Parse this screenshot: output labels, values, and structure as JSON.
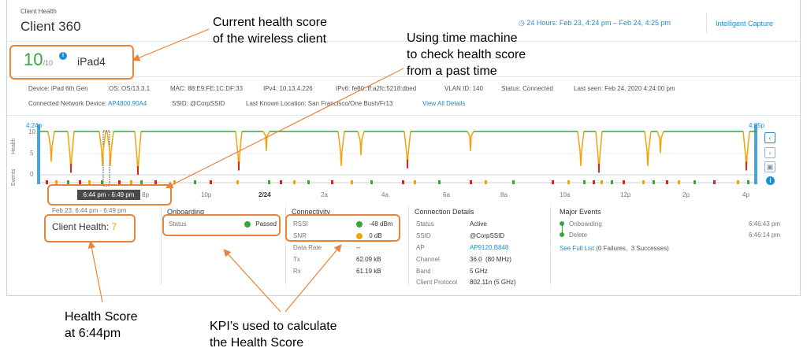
{
  "header": {
    "section_label": "Client Health",
    "title": "Client 360",
    "time_range": "24 Hours: Feb 23, 4:24 pm – Feb 24, 4:25 pm",
    "intelligent_capture": "Intelligent Capture"
  },
  "client": {
    "score": "10",
    "score_max": "/10",
    "name": "iPad4"
  },
  "details": {
    "row1": [
      {
        "label": "Device:",
        "value": "iPad 6th Gen"
      },
      {
        "label": "OS:",
        "value": "OS/13.3.1"
      },
      {
        "label": "MAC:",
        "value": "88:E9:FE:1C:DF:33"
      },
      {
        "label": "IPv4:",
        "value": "10.13.4.226"
      },
      {
        "label": "IPv6:",
        "value": "fe80::ff:a2fc:5218:dbed"
      },
      {
        "label": "VLAN ID:",
        "value": "140"
      },
      {
        "label": "Status:",
        "value": "Connected"
      },
      {
        "label": "Last seen:",
        "value": "Feb 24, 2020 4:24:00 pm"
      }
    ],
    "row2": {
      "network_device_label": "Connected Network Device:",
      "network_device_value": "AP4800.90A4",
      "ssid_label": "SSID:",
      "ssid_value": "@CorpSSID",
      "location_label": "Last Known Location:",
      "location_value": "San Francisco/One Bush/Fr13",
      "view_all": "View All Details"
    }
  },
  "timeline": {
    "start_label": "4:24p",
    "end_label": "4:25p",
    "y_ticks": [
      "10",
      "5",
      "0"
    ],
    "health_axis": "Health",
    "events_axis": "Events",
    "selected_range": "6:44 pm - 6:49 pm",
    "x_ticks": [
      "8p",
      "10p",
      "2/24",
      "2a",
      "4a",
      "6a",
      "8a",
      "10a",
      "12p",
      "2p",
      "4p"
    ],
    "health_color": "#3aa53a",
    "dip_color": "#f0a30a",
    "low_color": "#d7261e"
  },
  "summary": {
    "time_window": "Feb 23, 6:44 pm - 6:49 pm",
    "client_health_label": "Client Health:",
    "client_health_value": "7"
  },
  "onboarding": {
    "title": "Onboarding",
    "status_label": "Status",
    "status_value": "Passed"
  },
  "connectivity": {
    "title": "Connectivity",
    "rows": [
      {
        "label": "RSSI",
        "value": "-48 dBm"
      },
      {
        "label": "SNR",
        "value": "0 dB"
      },
      {
        "label": "Data Rate",
        "value": "--"
      },
      {
        "label": "Tx",
        "value": "62.09 kB"
      },
      {
        "label": "Rx",
        "value": "61.19 kB"
      }
    ]
  },
  "connection_details": {
    "title": "Connection Details",
    "rows": [
      {
        "label": "Status",
        "value": "Active"
      },
      {
        "label": "SSID",
        "value": "@CorpSSID"
      },
      {
        "label": "AP",
        "value": "AP9120.B848"
      },
      {
        "label": "Channel",
        "value": "36.0  (80 MHz)"
      },
      {
        "label": "Band",
        "value": "5 GHz"
      },
      {
        "label": "Client Protocol",
        "value": "802.11n (5 GHz)"
      }
    ]
  },
  "major_events": {
    "title": "Major Events",
    "events": [
      {
        "label": "Onboarding",
        "time": "6:46:43 pm"
      },
      {
        "label": "Delete",
        "time": "6:46:14 pm"
      }
    ],
    "see_full_list": "See Full List",
    "summary": "(0 Failures,  3 Successes)"
  },
  "annotations": {
    "current_score": [
      "Current health score",
      "of the wireless client"
    ],
    "time_machine": [
      "Using time machine",
      "to check health score",
      "from a past time"
    ],
    "health_at": [
      "Health Score",
      "at 6:44pm"
    ],
    "kpis": [
      "KPI’s used to calculate",
      "the Health Score"
    ]
  }
}
